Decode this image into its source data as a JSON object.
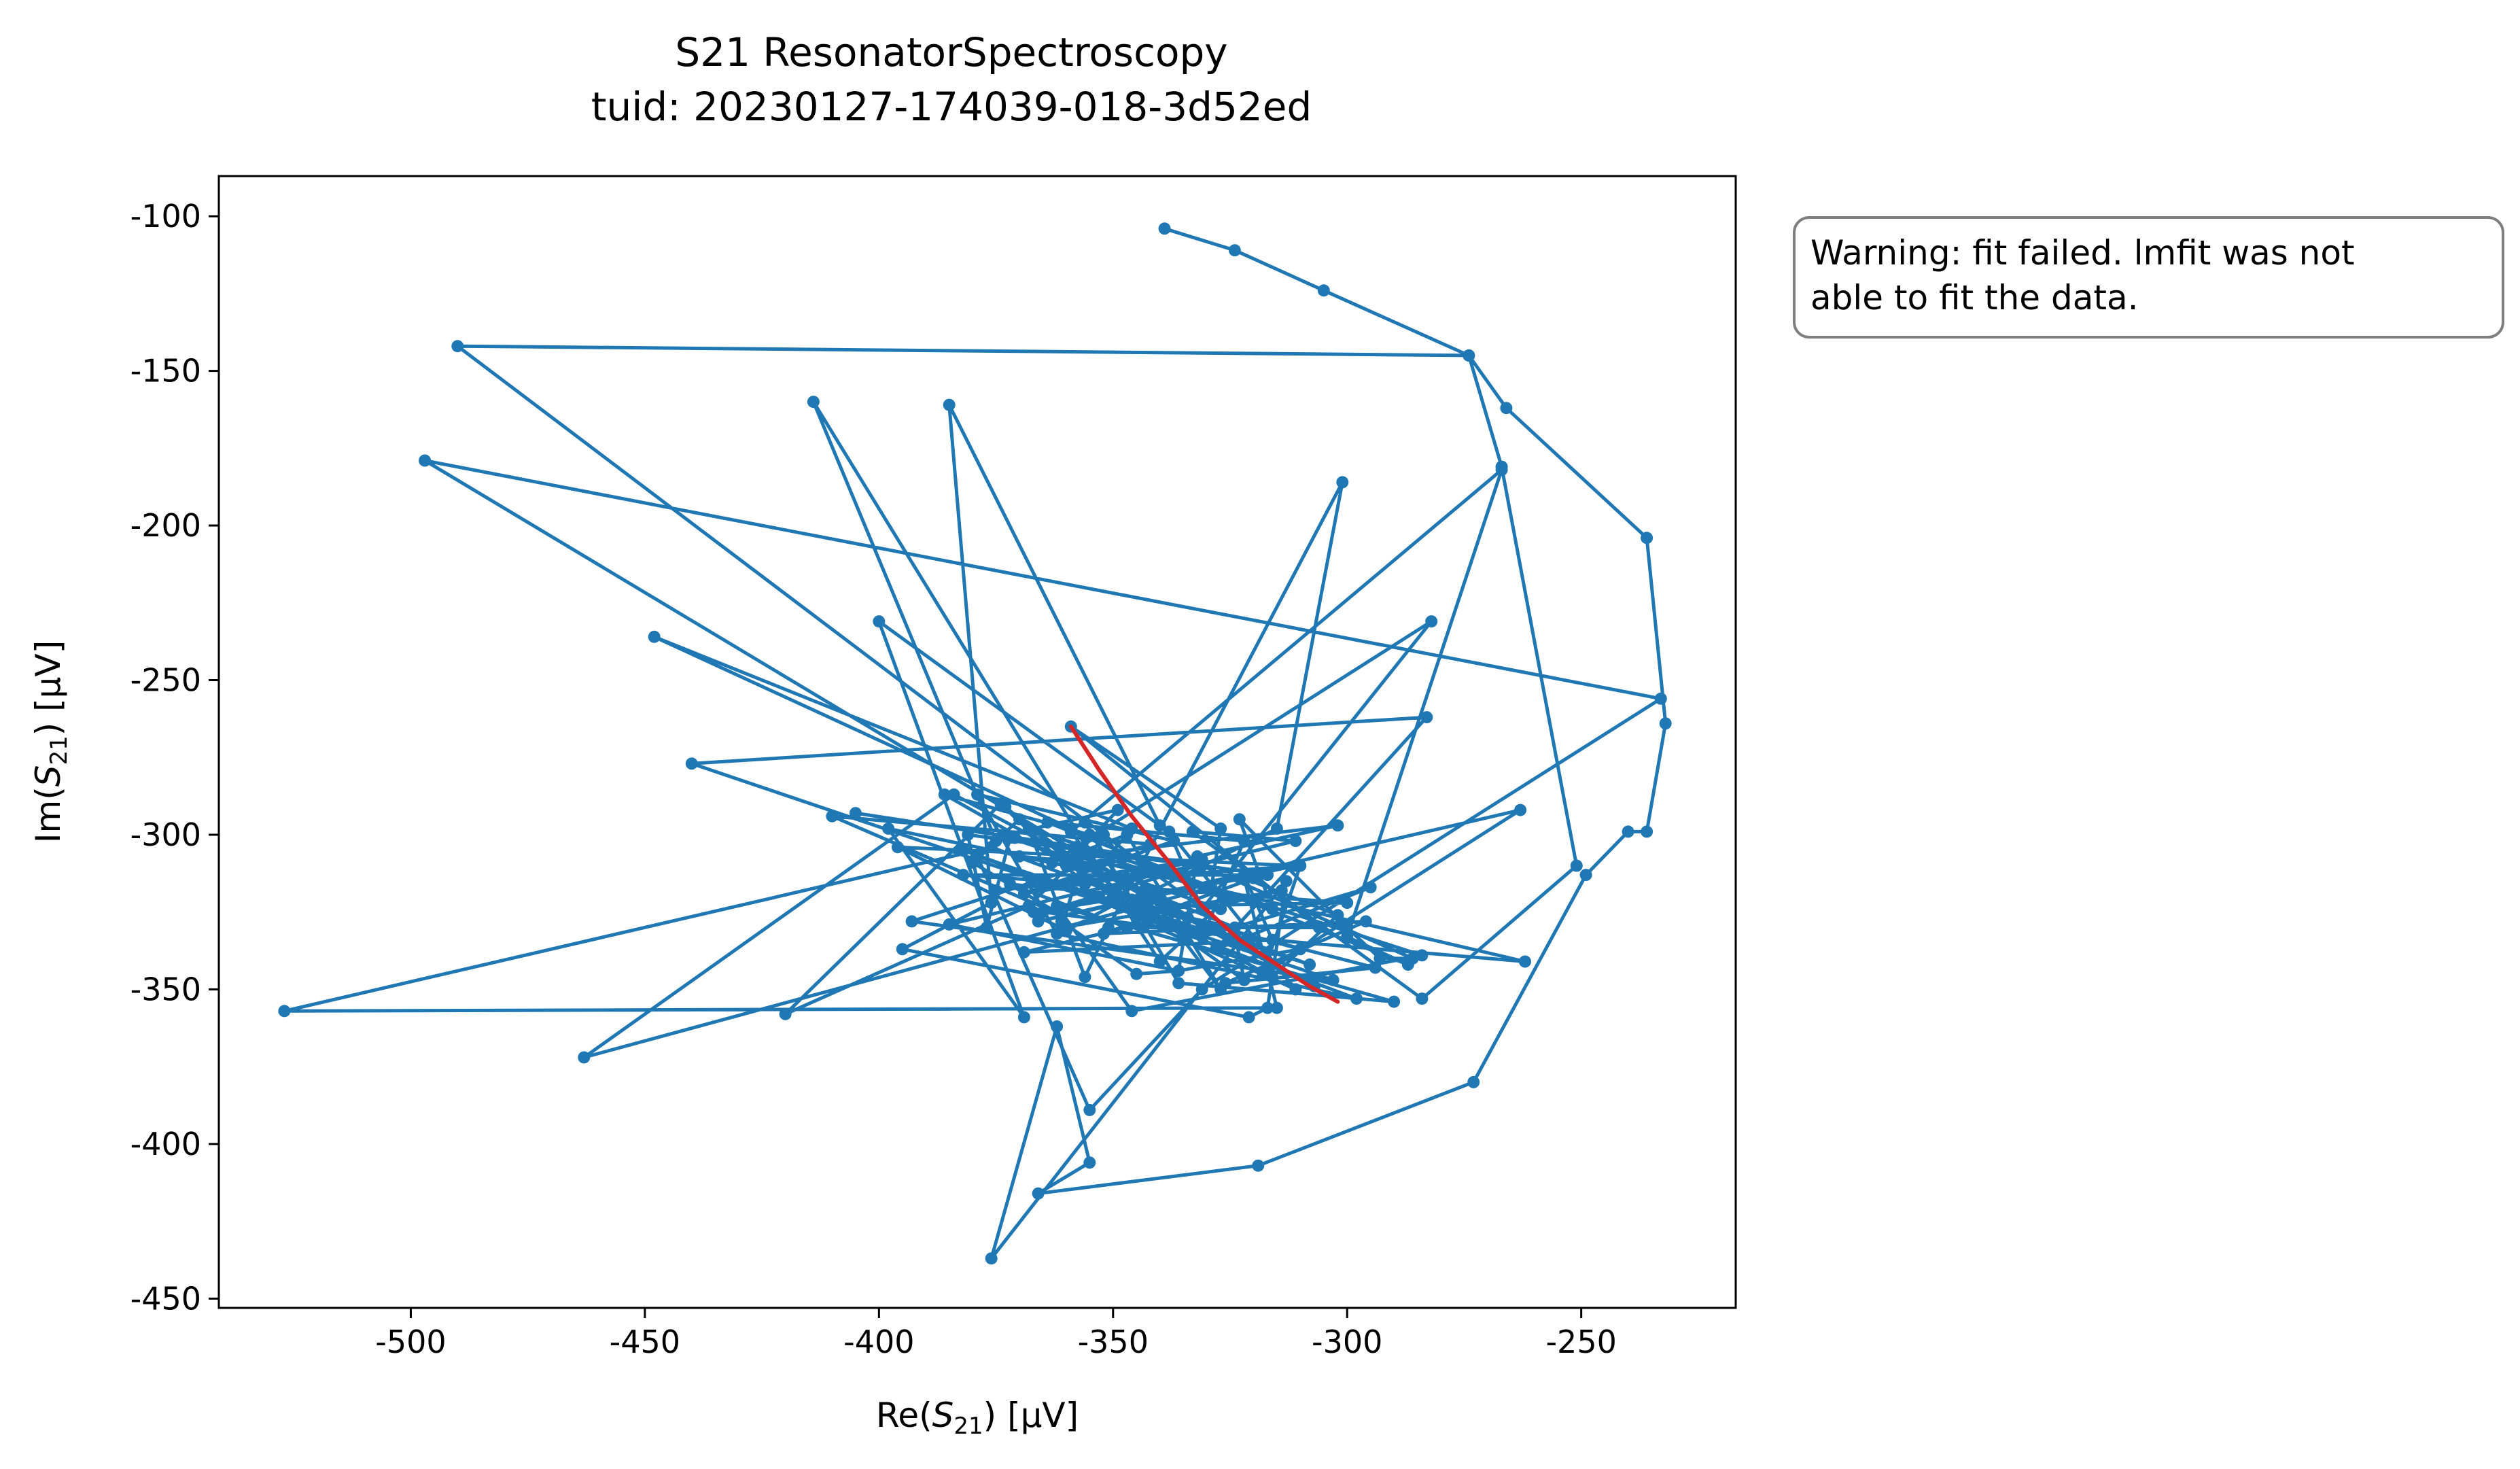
{
  "chart_data": {
    "type": "scatter",
    "title": "S21 ResonatorSpectroscopy",
    "subtitle": "tuid: 20230127-174039-018-3d52ed",
    "xlabel": "Re(S21) [µV]",
    "ylabel": "Im(S21) [µV]",
    "xlabel_parts": {
      "pre": "Re(",
      "var": "S",
      "sub": "21",
      "post": ") [µV]"
    },
    "ylabel_parts": {
      "pre": "Im(",
      "var": "S",
      "sub": "21",
      "post": ") [µV]"
    },
    "xlim": [
      -541,
      -217
    ],
    "ylim": [
      -453,
      -87
    ],
    "xticks": [
      -500,
      -450,
      -400,
      -350,
      -300,
      -250
    ],
    "yticks": [
      -100,
      -150,
      -200,
      -250,
      -300,
      -350,
      -400,
      -450
    ],
    "xtick_labels": [
      "-500",
      "-450",
      "-400",
      "-350",
      "-300",
      "-250"
    ],
    "ytick_labels": [
      "-100",
      "-150",
      "-200",
      "-250",
      "-300",
      "-350",
      "-400",
      "-450"
    ],
    "grid": false,
    "colors": {
      "data": "#1f77b4",
      "fit": "#d62728"
    },
    "series": [
      {
        "style": "line-markers",
        "x": [
          -339,
          -324,
          -305,
          -274,
          -266,
          -236,
          -232,
          -236,
          -240,
          -249,
          -273,
          -319,
          -366,
          -355,
          -362,
          -376,
          -313,
          -317,
          -321,
          -395,
          -376,
          -385,
          -340,
          -400,
          -369,
          -398,
          -360,
          -349,
          -373,
          -380,
          -361,
          -410,
          -342,
          -393,
          -303,
          -440,
          -283,
          -328,
          -295,
          -331,
          -322,
          -364,
          -287,
          -300,
          -267,
          -359,
          -356,
          -368,
          -420,
          -374,
          -356,
          -346,
          -448,
          -326,
          -340,
          -355,
          -316,
          -323,
          -300,
          -293,
          -286,
          -331,
          -405,
          -358,
          -352,
          -327,
          -347,
          -363,
          -282,
          -331,
          -338,
          -311,
          -345,
          -373,
          -350,
          -367,
          -317,
          -371,
          -324,
          -349,
          -360,
          -396,
          -311,
          -366,
          -263,
          -318,
          -310,
          -347,
          -370,
          -320,
          -352,
          -296,
          -326,
          -294,
          -353,
          -336,
          -382,
          -298,
          -362,
          -379,
          -337,
          -369,
          -340,
          -375,
          -331,
          -345,
          -339,
          -300,
          -382,
          -322,
          -316,
          -369,
          -314,
          -361,
          -355,
          -386,
          -350,
          -414,
          -375,
          -370,
          -322,
          -324,
          -490,
          -274,
          -267,
          -251,
          -284,
          -333,
          -311,
          -385,
          -336,
          -332,
          -302,
          -358,
          -262,
          -324,
          -365,
          -332,
          -381,
          -377,
          -372,
          -327,
          -346,
          -356,
          -336,
          -290,
          -362,
          -346,
          -284,
          -368,
          -356,
          -351,
          -301,
          -315,
          -344,
          -372,
          -347,
          -306,
          -359,
          -327,
          -329,
          -463,
          -384,
          -307,
          -353,
          -334,
          -497,
          -233,
          -331,
          -355,
          -379,
          -308,
          -376,
          -527,
          -315,
          -322,
          -302,
          -316,
          -344,
          -310,
          -336,
          -345,
          -361
        ],
        "y": [
          -104,
          -111,
          -124,
          -145,
          -162,
          -204,
          -264,
          -299,
          -299,
          -313,
          -380,
          -407,
          -416,
          -406,
          -362,
          -437,
          -315,
          -356,
          -359,
          -337,
          -322,
          -161,
          -297,
          -231,
          -359,
          -298,
          -310,
          -292,
          -300,
          -309,
          -326,
          -294,
          -303,
          -328,
          -347,
          -277,
          -262,
          -337,
          -317,
          -333,
          -302,
          -296,
          -342,
          -333,
          -182,
          -299,
          -305,
          -323,
          -358,
          -290,
          -316,
          -298,
          -236,
          -321,
          -341,
          -306,
          -324,
          -295,
          -330,
          -340,
          -340,
          -310,
          -293,
          -304,
          -300,
          -350,
          -300,
          -309,
          -231,
          -324,
          -299,
          -350,
          -327,
          -291,
          -320,
          -325,
          -313,
          -301,
          -330,
          -322,
          -331,
          -304,
          -310,
          -328,
          -292,
          -345,
          -310,
          -314,
          -307,
          -314,
          -332,
          -328,
          -348,
          -343,
          -320,
          -330,
          -305,
          -353,
          -332,
          -287,
          -302,
          -319,
          -312,
          -318,
          -308,
          -313,
          -323,
          -322,
          -313,
          -313,
          -334,
          -338,
          -318,
          -330,
          -300,
          -287,
          -318,
          -160,
          -302,
          -295,
          -347,
          -332,
          -142,
          -145,
          -181,
          -310,
          -353,
          -299,
          -302,
          -329,
          -344,
          -307,
          -297,
          -307,
          -341,
          -333,
          -325,
          -310,
          -300,
          -330,
          -301,
          -324,
          -321,
          -296,
          -348,
          -354,
          -323,
          -357,
          -339,
          -298,
          -346,
          -330,
          -186,
          -298,
          -320,
          -316,
          -330,
          -330,
          -265,
          -298,
          -317,
          -372,
          -287,
          -349,
          -310,
          -327,
          -179,
          -256,
          -350,
          -389,
          -307,
          -342,
          -304,
          -357,
          -356,
          -314,
          -326,
          -346,
          -323,
          -337,
          -344,
          -345,
          -328
        ]
      },
      {
        "style": "line",
        "x": [
          -359,
          -353,
          -346,
          -338,
          -331,
          -323,
          -315,
          -308,
          -302
        ],
        "y": [
          -265,
          -279,
          -294,
          -309,
          -323,
          -334,
          -342,
          -349,
          -354
        ]
      }
    ],
    "annotation": [
      "Warning: fit failed. lmfit was not",
      "able to fit the data."
    ]
  }
}
